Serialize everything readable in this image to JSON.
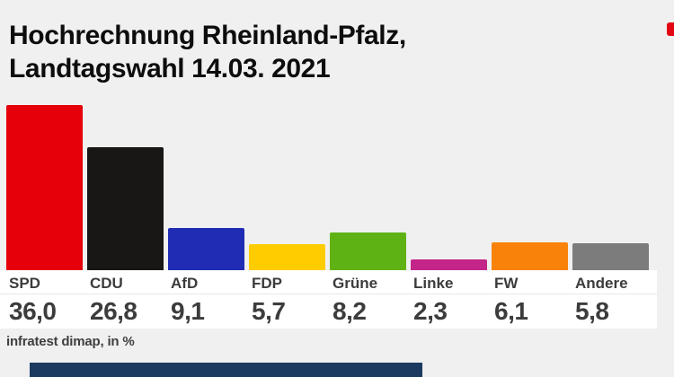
{
  "header": {
    "title_line1": "Hochrechnung Rheinland-Pfalz,",
    "title_line2": "Landtagswahl 14.03. 2021"
  },
  "chart_data": {
    "type": "bar",
    "title": "Hochrechnung Rheinland-Pfalz, Landtagswahl 14.03. 2021",
    "categories": [
      "SPD",
      "CDU",
      "AfD",
      "FDP",
      "Grüne",
      "Linke",
      "FW",
      "Andere"
    ],
    "values": [
      36.0,
      26.8,
      9.1,
      5.7,
      8.2,
      2.3,
      6.1,
      5.8
    ],
    "value_labels": [
      "36,0",
      "26,8",
      "9,1",
      "5,7",
      "8,2",
      "2,3",
      "6,1",
      "5,8"
    ],
    "bar_colors": [
      "#e60009",
      "#191715",
      "#202cb4",
      "#ffcc00",
      "#5fb214",
      "#c32588",
      "#f8820a",
      "#7c7c7c"
    ],
    "unit": "%",
    "xlabel": "",
    "ylabel": "",
    "grid": false,
    "legend": false,
    "source": "infratest dimap, in %"
  },
  "footer": {
    "source_label": "infratest dimap, in %"
  },
  "decorations": {
    "bottom_banner_color": "#1c3a60",
    "edge_marker_color": "#e30613",
    "background_color": "#f0f0f0",
    "strip_color": "#ffffff"
  }
}
